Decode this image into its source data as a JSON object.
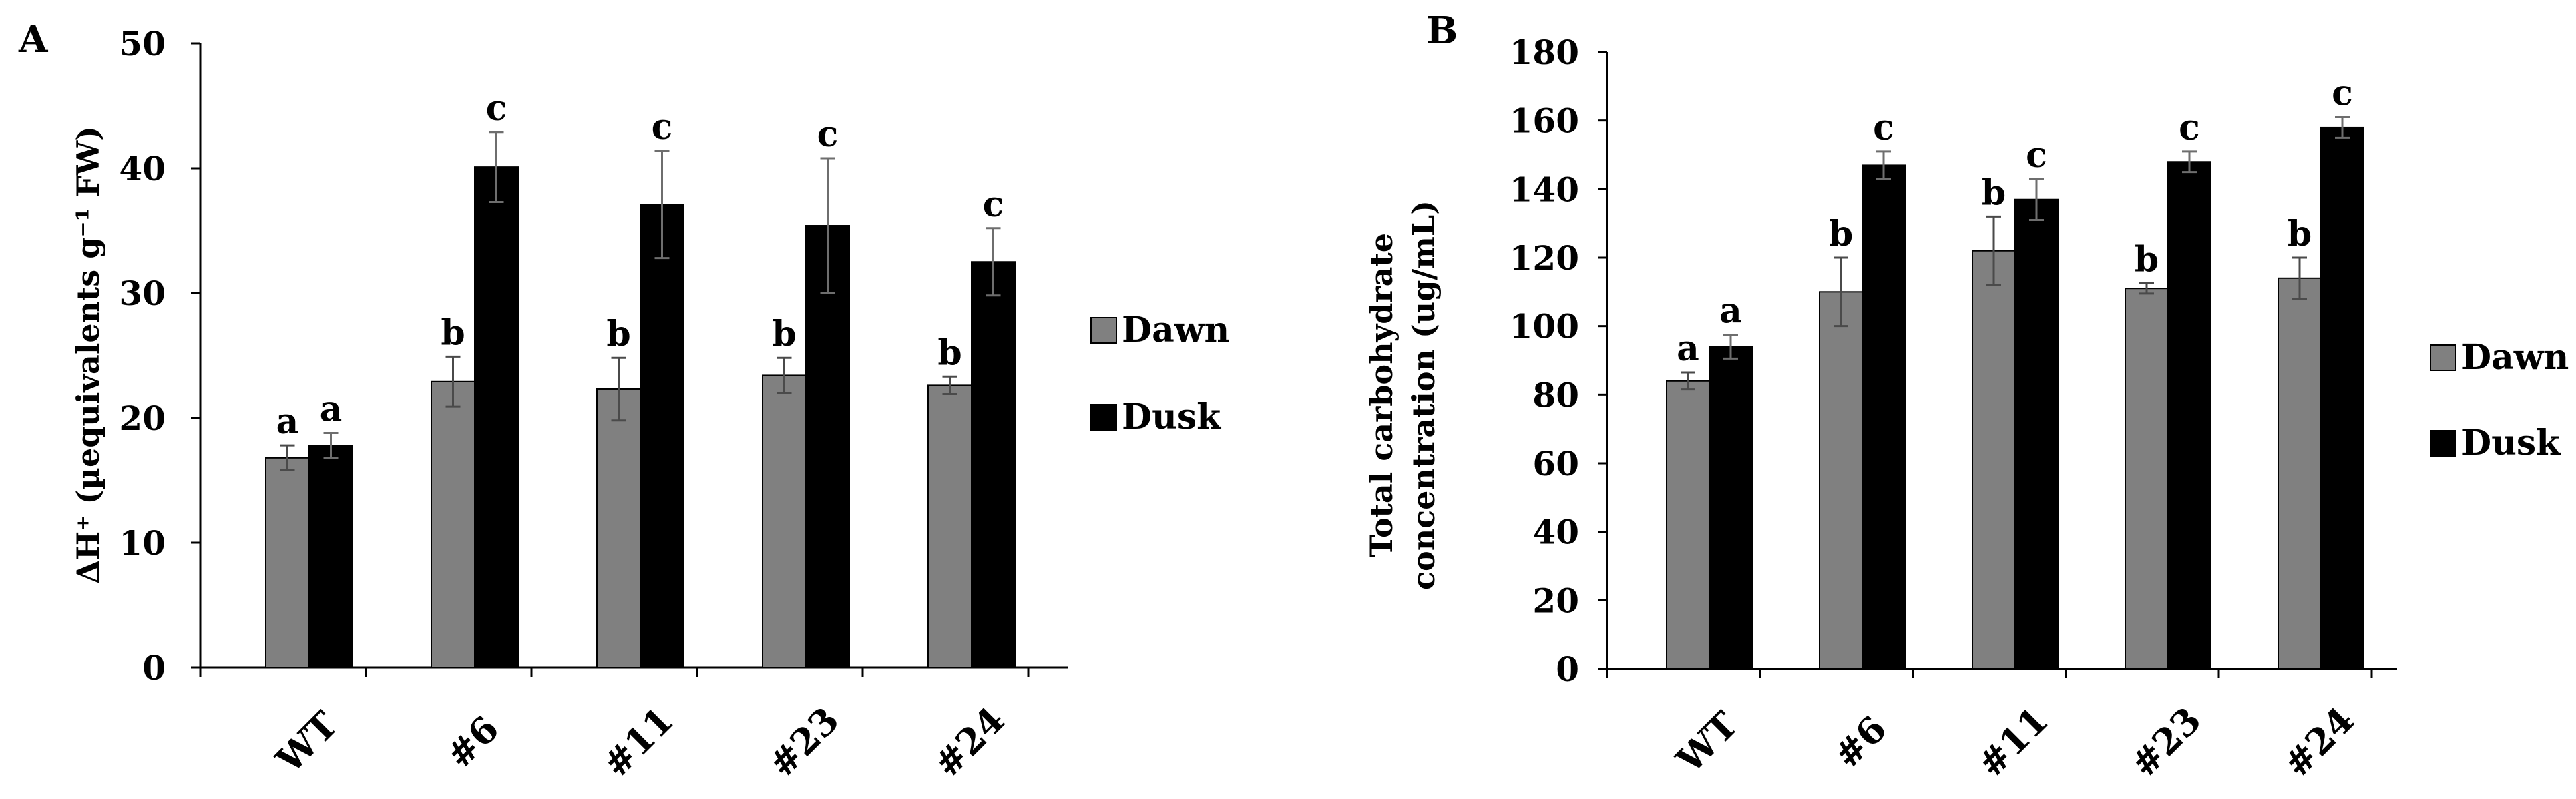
{
  "chart_data": [
    {
      "panel": "A",
      "type": "bar",
      "title": "",
      "xlabel": "",
      "ylabel": "ΔH⁺ (µequivalents g⁻¹ FW)",
      "categories": [
        "WT",
        "#6",
        "#11",
        "#23",
        "#24"
      ],
      "ylim": [
        0,
        50
      ],
      "yticks": [
        0,
        10,
        20,
        30,
        40,
        50
      ],
      "grid": false,
      "legend_position": "right",
      "series": [
        {
          "name": "Dawn",
          "color": "#808080",
          "values": [
            16.8,
            22.9,
            22.3,
            23.4,
            22.6
          ],
          "errors": [
            1.0,
            2.0,
            2.5,
            1.4,
            0.7
          ],
          "letters": [
            "a",
            "b",
            "b",
            "b",
            "b"
          ]
        },
        {
          "name": "Dusk",
          "color": "#000000",
          "values": [
            17.8,
            40.1,
            37.1,
            35.4,
            32.5
          ],
          "errors": [
            1.0,
            2.8,
            4.3,
            5.4,
            2.7
          ],
          "letters": [
            "a",
            "c",
            "c",
            "c",
            "c"
          ]
        }
      ]
    },
    {
      "panel": "B",
      "type": "bar",
      "title": "",
      "xlabel": "",
      "ylabel_line1": "Total carbohydrate",
      "ylabel_line2": "concentration (ug/mL)",
      "categories": [
        "WT",
        "#6",
        "#11",
        "#23",
        "#24"
      ],
      "ylim": [
        0,
        180
      ],
      "yticks": [
        0,
        20,
        40,
        60,
        80,
        100,
        120,
        140,
        160,
        180
      ],
      "grid": false,
      "legend_position": "right",
      "series": [
        {
          "name": "Dawn",
          "color": "#808080",
          "values": [
            84,
            110,
            122,
            111,
            114
          ],
          "errors": [
            2.5,
            10,
            10,
            1.5,
            6
          ],
          "letters": [
            "a",
            "b",
            "b",
            "b",
            "b"
          ]
        },
        {
          "name": "Dusk",
          "color": "#000000",
          "values": [
            94,
            147,
            137,
            148,
            158
          ],
          "errors": [
            3.5,
            4,
            6,
            3,
            3
          ],
          "letters": [
            "a",
            "c",
            "c",
            "c",
            "c"
          ]
        }
      ]
    }
  ]
}
